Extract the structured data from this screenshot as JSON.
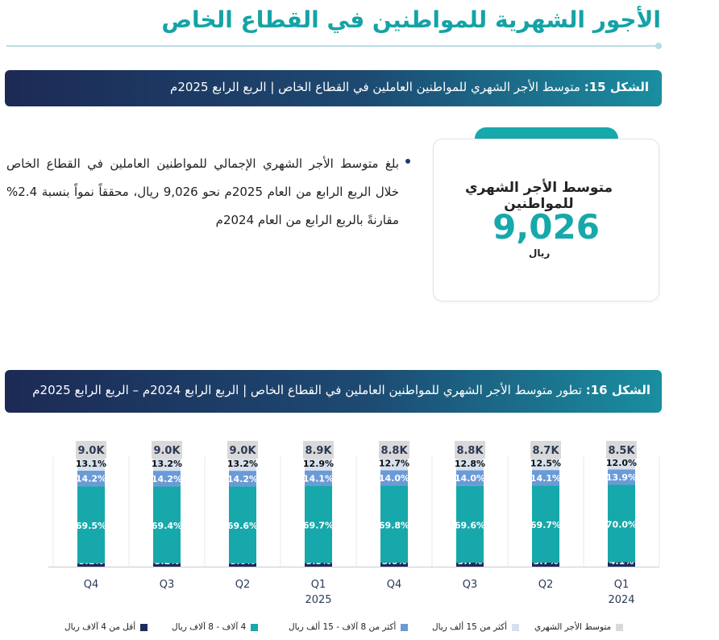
{
  "header": {
    "title": "الأجور الشهرية للمواطنين في القطاع الخاص"
  },
  "figure15": {
    "label": "الشكل 15:",
    "text": "متوسط الأجر الشهري للمواطنين العاملين في القطاع الخاص | الربع الرابع 2025م"
  },
  "kpi": {
    "title": "متوسط الأجر الشهري للمواطنين",
    "value": "9,026",
    "unit": "ريال"
  },
  "bullet": {
    "text": "بلغ متوسط الأجر الشهري الإجمالي للمواطنين العاملين في القطاع الخاص خلال الربع الرابع من العام 2025م نحو 9,026 ريال، محققاً نمواً بنسبة 2.4% مقارنةً بالربع الرابع من العام 2024م"
  },
  "figure16": {
    "label": "الشكل 16:",
    "text": "تطور متوسط الأجر الشهري للمواطنين العاملين في القطاع الخاص | الربع الرابع 2024م – الربع الرابع 2025م"
  },
  "colors": {
    "lt4k": "#1f2a5c",
    "k4to8": "#17a8ab",
    "k8to15": "#6b9bd6",
    "gt15": "#d6e1ee",
    "avg": "#d9d9d9"
  },
  "chart_data": {
    "type": "bar",
    "stacked": true,
    "percent_scale": true,
    "categories": [
      "Q4",
      "Q3",
      "Q2",
      "Q1",
      "Q4",
      "Q3",
      "Q2",
      "Q1"
    ],
    "category_years": [
      "",
      "",
      "",
      "2025",
      "",
      "",
      "",
      "2024"
    ],
    "series": [
      {
        "name": "أقل من 4 آلاف ريال",
        "values": [
          3.1,
          3.2,
          3.0,
          3.3,
          3.6,
          3.7,
          3.7,
          4.1
        ]
      },
      {
        "name": "4 آلاف - 8 آلاف ريال",
        "values": [
          69.5,
          69.4,
          69.6,
          69.7,
          69.8,
          69.6,
          69.7,
          70.0
        ]
      },
      {
        "name": "أكثر من 8 آلاف - 15 ألف ريال",
        "values": [
          14.2,
          14.2,
          14.2,
          14.1,
          14.0,
          14.0,
          14.1,
          13.9
        ]
      },
      {
        "name": "أكثر من 15 ألف ريال",
        "values": [
          13.1,
          13.2,
          13.2,
          12.9,
          12.7,
          12.8,
          12.5,
          12.0
        ]
      }
    ],
    "average_wage": {
      "name": "متوسط الأجر الشهري",
      "labels": [
        "9.0K",
        "9.0K",
        "9.0K",
        "8.9K",
        "8.8K",
        "8.8K",
        "8.7K",
        "8.5K"
      ]
    },
    "legend_position": "bottom",
    "grid": false
  }
}
